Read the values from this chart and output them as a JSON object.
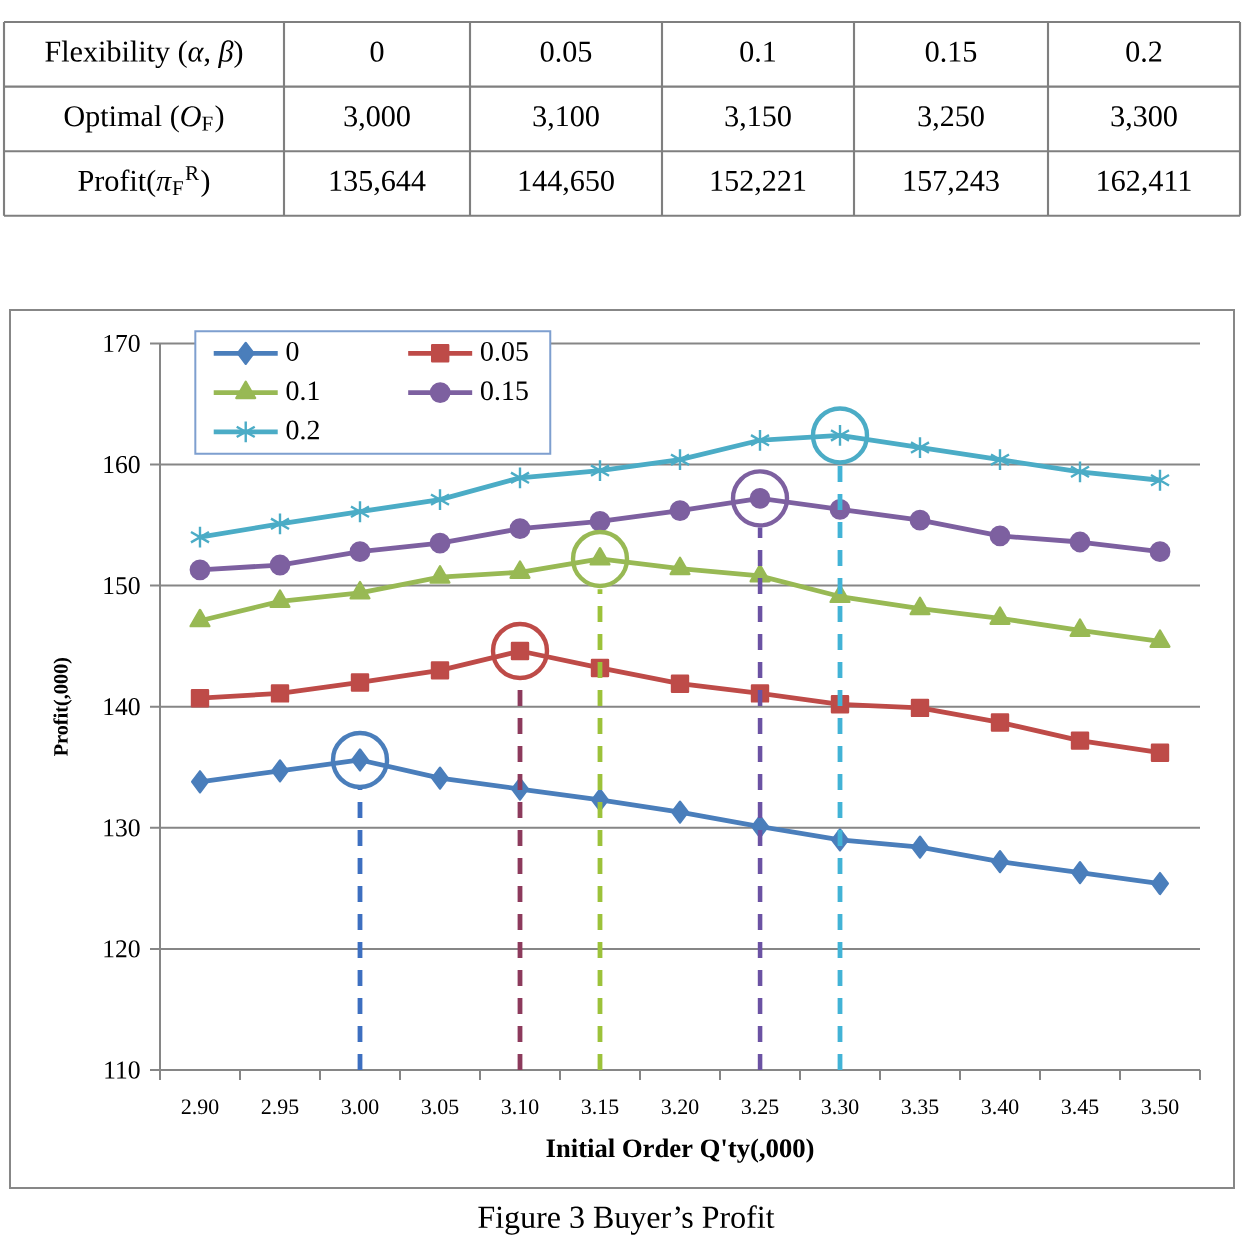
{
  "chart_data": {
    "type": "line",
    "xlabel": "Initial Order Q'ty(,000)",
    "ylabel": "Profit(,000)",
    "annotations": [
      "Flexibility (*α*, *β*)",
      "0",
      "0.05",
      "0.1",
      "0.15",
      "0.2",
      "Optimal (*O*$_{F}$)",
      "3,000",
      "3,100",
      "3,150",
      "3,250",
      "3,300",
      "Profit(*π*$_{F}$$^{R}$)",
      "135,644",
      "144,650",
      "152,221",
      "157,243",
      "162,411",
      "Figure 3 Buyer’s Profit"
    ],
    "categories": [
      "2.90",
      "2.95",
      "3.00",
      "3.05",
      "3.10",
      "3.15",
      "3.20",
      "3.25",
      "3.30",
      "3.35",
      "3.40",
      "3.45",
      "3.50"
    ],
    "ylim": [
      110,
      170
    ],
    "yticks": [
      110,
      120,
      130,
      140,
      150,
      160,
      170
    ],
    "grid": "y",
    "legend": "top left",
    "series": [
      {
        "name": "0",
        "color": "#4A7EBB",
        "marker": "diamond",
        "values": [
          133.8,
          134.7,
          135.6,
          134.1,
          133.2,
          132.3,
          131.3,
          130.1,
          129.0,
          128.4,
          127.2,
          126.3,
          125.4
        ]
      },
      {
        "name": "0.05",
        "color": "#BE4B48",
        "marker": "square",
        "values": [
          140.7,
          141.1,
          142.0,
          143.0,
          144.6,
          143.2,
          141.9,
          141.1,
          140.2,
          139.9,
          138.7,
          137.2,
          136.2
        ]
      },
      {
        "name": "0.1",
        "color": "#98B954",
        "marker": "triangle",
        "values": [
          147.1,
          148.7,
          149.4,
          150.7,
          151.1,
          152.2,
          151.4,
          150.8,
          149.1,
          148.1,
          147.3,
          146.3,
          145.4
        ]
      },
      {
        "name": "0.15",
        "color": "#7D60A0",
        "marker": "circle",
        "values": [
          151.3,
          151.7,
          152.8,
          153.5,
          154.7,
          155.3,
          156.2,
          157.2,
          156.3,
          155.4,
          154.1,
          153.6,
          152.8
        ]
      },
      {
        "name": "0.2",
        "color": "#4BACC6",
        "marker": "cross",
        "values": [
          154.0,
          155.1,
          156.1,
          157.1,
          158.9,
          159.5,
          160.4,
          162.0,
          162.4,
          161.4,
          160.4,
          159.4,
          158.7
        ]
      },
      {
        "type": "scatter",
        "marker": "circle",
        "x": [
          "3.00",
          "3.10",
          "3.15",
          "3.25",
          "3.30"
        ],
        "values": [
          135.6,
          144.6,
          152.2,
          157.2,
          162.4
        ],
        "colors": [
          "#4A7EBB",
          "#BE4B48",
          "#98B954",
          "#7D60A0",
          "#4BACC6"
        ]
      },
      {
        "type": "line",
        "line_style": "dashed",
        "marker": "none",
        "color": "#3D6FC0",
        "x": [
          "3.00",
          "3.00"
        ],
        "values": [
          110,
          133.2
        ]
      },
      {
        "type": "line",
        "line_style": "dashed",
        "marker": "none",
        "color": "#8C3A5C",
        "x": [
          "3.10",
          "3.10"
        ],
        "values": [
          110,
          142.1
        ]
      },
      {
        "type": "line",
        "line_style": "dashed",
        "marker": "none",
        "color": "#9CC23A",
        "x": [
          "3.15",
          "3.15"
        ],
        "values": [
          110,
          149.7
        ]
      },
      {
        "type": "line",
        "line_style": "dashed",
        "marker": "none",
        "color": "#6B52A3",
        "x": [
          "3.25",
          "3.25"
        ],
        "values": [
          110,
          154.8
        ]
      },
      {
        "type": "line",
        "line_style": "dashed",
        "marker": "none",
        "color": "#42B3D6",
        "x": [
          "3.30",
          "3.30"
        ],
        "values": [
          110,
          160.1
        ]
      }
    ]
  }
}
